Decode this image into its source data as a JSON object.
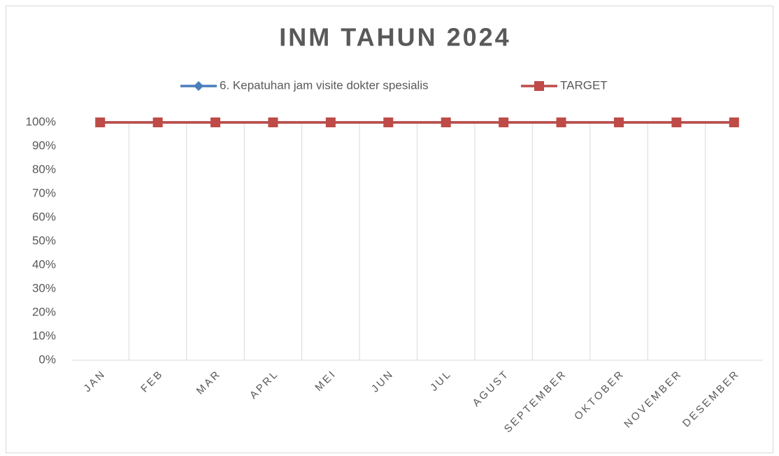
{
  "chart_data": {
    "type": "line",
    "title": "INM TAHUN 2024",
    "categories": [
      "JAN",
      "FEB",
      "MAR",
      "APRL",
      "MEI",
      "JUN",
      "JUL",
      "AGUST",
      "SEPTEMBER",
      "OKTOBER",
      "NOVEMBER",
      "DESEMBER"
    ],
    "series": [
      {
        "name": "6. Kepatuhan jam visite dokter spesialis",
        "color": "#4a7ebb",
        "marker": "diamond",
        "values": [
          100,
          100,
          100,
          100,
          100,
          100,
          100,
          100,
          100,
          100,
          100,
          100
        ]
      },
      {
        "name": "TARGET",
        "color": "#be4b48",
        "marker": "square",
        "values": [
          100,
          100,
          100,
          100,
          100,
          100,
          100,
          100,
          100,
          100,
          100,
          100
        ]
      }
    ],
    "ylim": [
      0,
      100
    ],
    "yticks": [
      {
        "value": 0,
        "label": "0%"
      },
      {
        "value": 10,
        "label": "10%"
      },
      {
        "value": 20,
        "label": "20%"
      },
      {
        "value": 30,
        "label": "30%"
      },
      {
        "value": 40,
        "label": "40%"
      },
      {
        "value": 50,
        "label": "50%"
      },
      {
        "value": 60,
        "label": "60%"
      },
      {
        "value": 70,
        "label": "70%"
      },
      {
        "value": 80,
        "label": "80%"
      },
      {
        "value": 90,
        "label": "90%"
      },
      {
        "value": 100,
        "label": "100%"
      }
    ],
    "legend": "top",
    "grid": "vertical"
  }
}
